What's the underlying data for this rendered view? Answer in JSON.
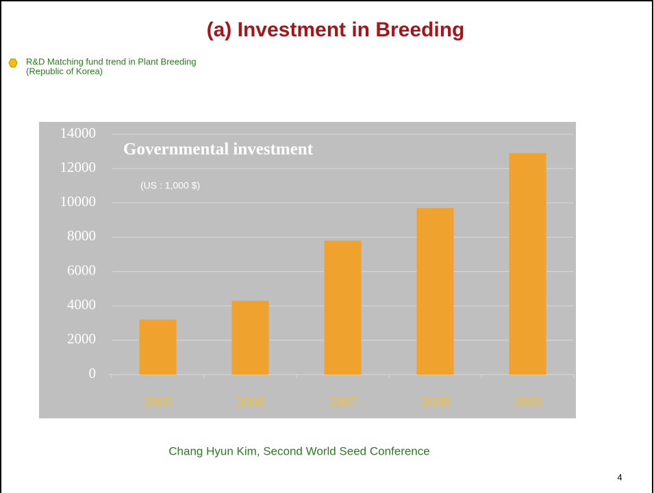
{
  "slide": {
    "title": "(a) Investment in Breeding",
    "bullet": [
      "R&D Matching fund trend in Plant Breeding",
      "(Republic of Korea)"
    ],
    "citation": "Chang Hyun Kim, Second World Seed Conference",
    "page_number": "4"
  },
  "chart_data": {
    "type": "bar",
    "title": "Governmental  investment",
    "subtitle": "(US :  1,000 $)",
    "categories": [
      "2005",
      "2006",
      "2007",
      "2008",
      "2009"
    ],
    "values": [
      3200,
      4300,
      7800,
      9700,
      12900
    ],
    "color": "#f0a22e",
    "ylim": [
      0,
      14000
    ],
    "yticks": [
      0,
      2000,
      4000,
      6000,
      8000,
      10000,
      12000,
      14000
    ],
    "grid": true
  }
}
